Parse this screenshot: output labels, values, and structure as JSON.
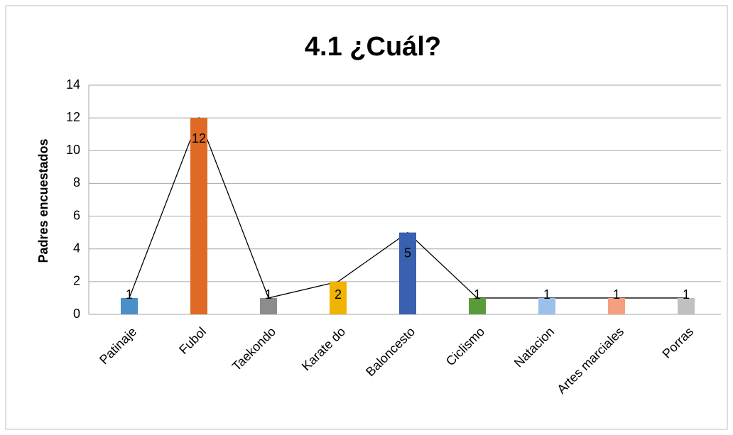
{
  "chart_data": {
    "type": "bar",
    "title": "4.1 ¿Cuál?",
    "y_label": "Padres encuestados",
    "categories": [
      "Patinaje",
      "Fubol",
      "Taekondo",
      "Karate do",
      "Baloncesto",
      "Ciclismo",
      "Natacion",
      "Artes marciales",
      "Porras"
    ],
    "values": [
      1,
      12,
      1,
      2,
      5,
      1,
      1,
      1,
      1
    ],
    "colors": [
      "#4a8fc8",
      "#e06a25",
      "#8c8c8c",
      "#f0b400",
      "#3a60b0",
      "#5a9a3a",
      "#9cc0e8",
      "#f4a080",
      "#c0c0c0"
    ],
    "line_color": "#000000",
    "ylim": [
      0,
      14
    ],
    "yticks": [
      0,
      2,
      4,
      6,
      8,
      10,
      12,
      14
    ],
    "grid": true
  }
}
